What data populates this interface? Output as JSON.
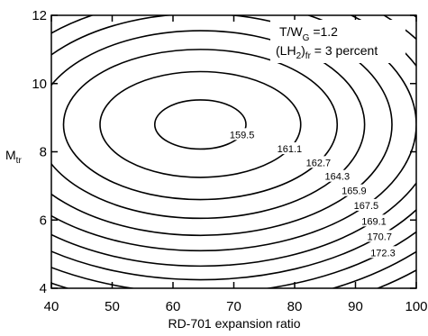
{
  "chart_data": {
    "type": "contour",
    "xlabel": "RD-701 expansion ratio",
    "ylabel": "M",
    "ylabel_sub": "tr",
    "xlim": [
      40,
      100
    ],
    "ylim": [
      4,
      12
    ],
    "xticks": [
      "40",
      "50",
      "60",
      "70",
      "80",
      "90",
      "100"
    ],
    "yticks": [
      "4",
      "6",
      "8",
      "10",
      "12"
    ],
    "grid": false,
    "center": {
      "x": 64.5,
      "y": 8.8
    },
    "levels": [
      {
        "label": "159.5",
        "x_halfwidth": 7.5,
        "y_halfheight": 0.72
      },
      {
        "label": "161.1",
        "x_halfwidth": 16.5,
        "y_halfheight": 1.55
      },
      {
        "label": "162.7",
        "x_halfwidth": 22.5,
        "y_halfheight": 2.2
      },
      {
        "label": "164.3",
        "x_halfwidth": 27.0,
        "y_halfheight": 2.75
      },
      {
        "label": "165.9",
        "x_halfwidth": 31.5,
        "y_halfheight": 3.25
      },
      {
        "label": "167.5",
        "x_halfwidth": 35.5,
        "y_halfheight": 3.7
      },
      {
        "label": "169.1",
        "x_halfwidth": 39.0,
        "y_halfheight": 4.15
      },
      {
        "label": "170.7",
        "x_halfwidth": 42.5,
        "y_halfheight": 4.55
      },
      {
        "label": "172.3",
        "x_halfwidth": 46.0,
        "y_halfheight": 4.95
      },
      {
        "label": "",
        "x_halfwidth": 49.5,
        "y_halfheight": 5.35
      },
      {
        "label": "",
        "x_halfwidth": 53.0,
        "y_halfheight": 5.75
      }
    ],
    "annotations": {
      "line1_main": "T/W",
      "line1_sub": "G",
      "line1_rest": " =1.2",
      "line2_open": "(LH",
      "line2_sub2": "2",
      "line2_close": ")",
      "line2_sub": "fr",
      "line2_rest": " = 3 percent"
    }
  }
}
